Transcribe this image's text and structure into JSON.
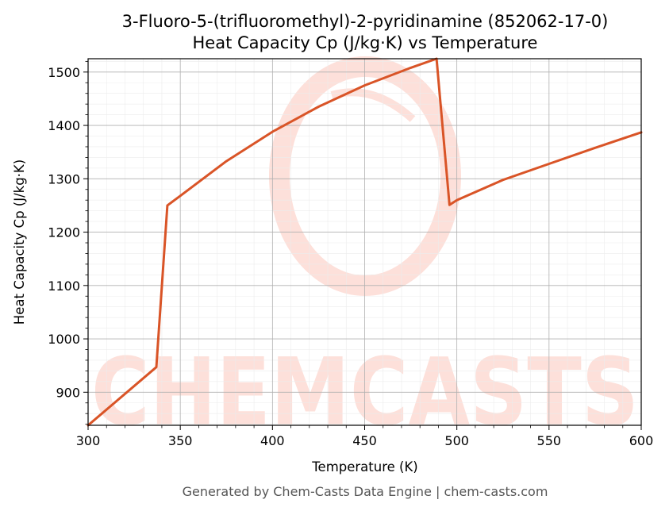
{
  "chart_data": {
    "type": "line",
    "title_line1": "3-Fluoro-5-(trifluoromethyl)-2-pyridinamine (852062-17-0)",
    "title_line2": "Heat Capacity Cp (J/kg·K) vs Temperature",
    "xlabel": "Temperature (K)",
    "ylabel": "Heat Capacity Cp (J/kg·K)",
    "xlim": [
      300,
      600
    ],
    "ylim": [
      838,
      1525
    ],
    "x_ticks": [
      300,
      350,
      400,
      450,
      500,
      550,
      600
    ],
    "y_ticks": [
      900,
      1000,
      1100,
      1200,
      1300,
      1400,
      1500
    ],
    "grid": true,
    "line_color": "#d95427",
    "series": [
      {
        "x": [
          300,
          337,
          343,
          350,
          375,
          400,
          425,
          450,
          475,
          489,
          496,
          500,
          525,
          550,
          575,
          600
        ],
        "values": [
          838,
          947,
          1250,
          1268,
          1333,
          1388,
          1435,
          1475,
          1508,
          1525,
          1251,
          1260,
          1298,
          1328,
          1358,
          1387
        ]
      }
    ]
  },
  "watermark": {
    "text": "CHEMCASTS",
    "color": "#fde0da"
  },
  "footer": "Generated by Chem-Casts Data Engine | chem-casts.com"
}
